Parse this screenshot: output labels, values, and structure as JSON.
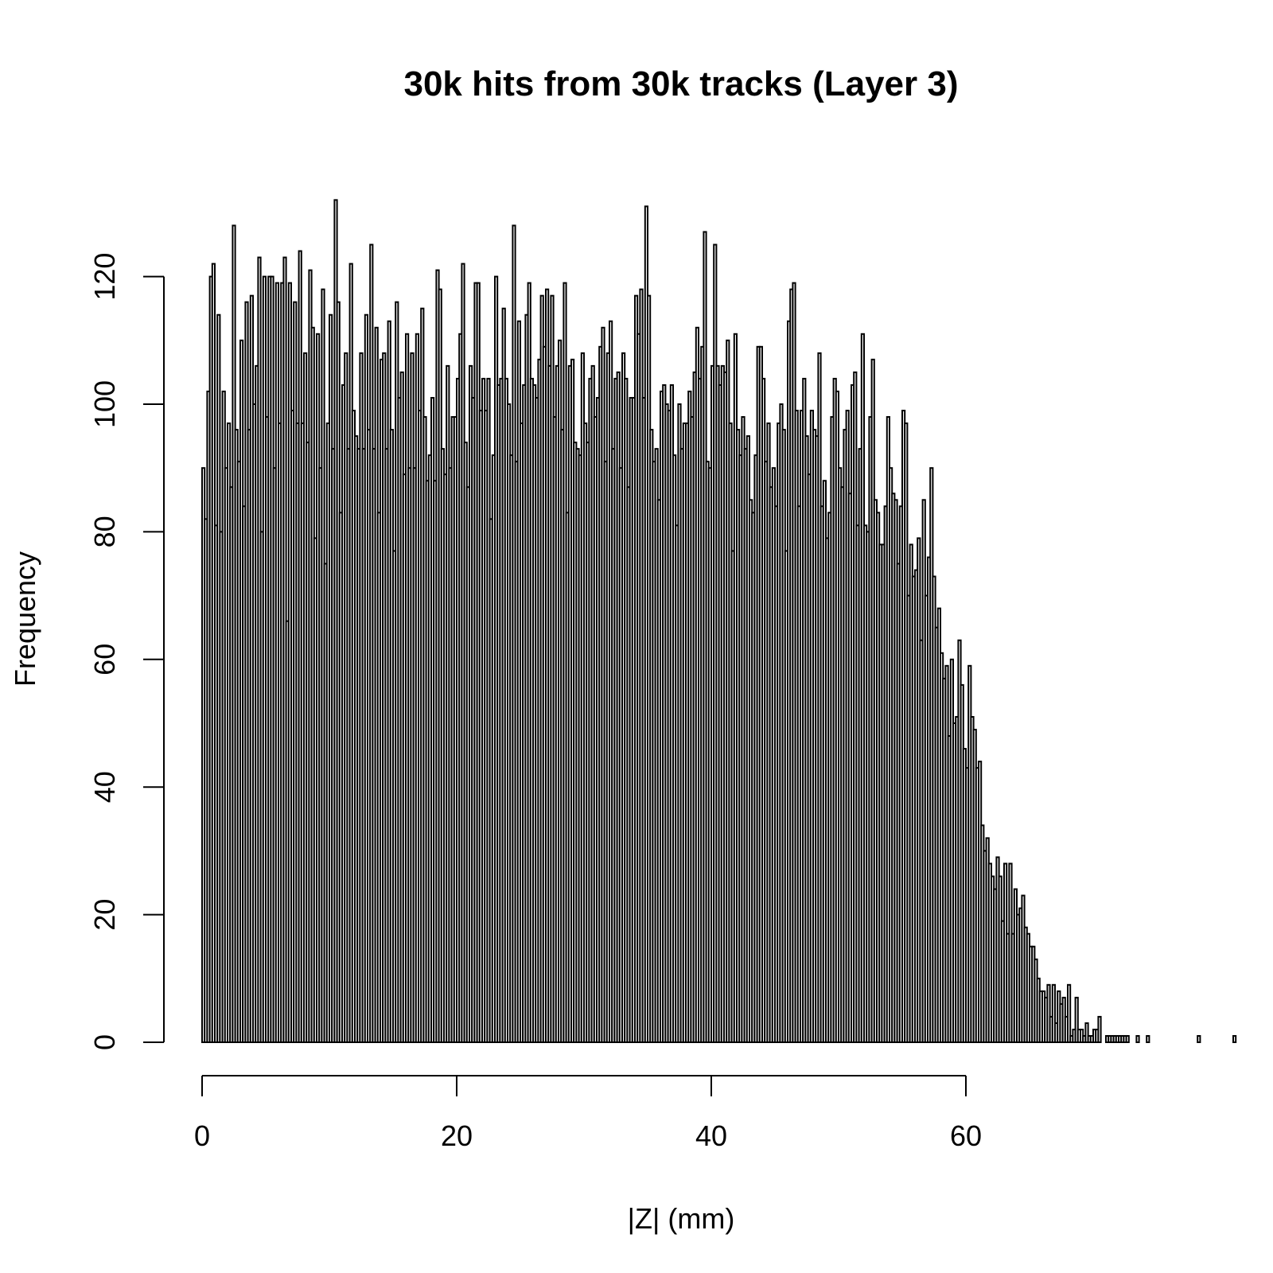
{
  "chart_data": {
    "type": "bar",
    "title": "30k hits from 30k tracks (Layer 3)",
    "xlabel": "|Z| (mm)",
    "ylabel": "Frequency",
    "xlim": [
      0,
      78
    ],
    "ylim": [
      0,
      132
    ],
    "xticks": [
      0,
      20,
      40,
      60
    ],
    "yticks": [
      0,
      20,
      40,
      60,
      80,
      100,
      120
    ],
    "bin_width": 0.2,
    "bin_start": 0,
    "grid": false,
    "legend": "none",
    "bar_color": "#ffffff",
    "edge_color": "#000000",
    "values": [
      90,
      82,
      102,
      120,
      122,
      81,
      114,
      80,
      102,
      90,
      97,
      87,
      128,
      96,
      91,
      110,
      84,
      116,
      96,
      117,
      100,
      106,
      123,
      80,
      120,
      98,
      120,
      120,
      90,
      119,
      97,
      119,
      123,
      66,
      119,
      99,
      116,
      97,
      124,
      97,
      108,
      94,
      121,
      112,
      79,
      111,
      90,
      118,
      75,
      97,
      114,
      93,
      132,
      116,
      83,
      103,
      108,
      93,
      122,
      99,
      95,
      93,
      108,
      93,
      114,
      96,
      125,
      93,
      112,
      83,
      107,
      108,
      93,
      113,
      96,
      77,
      116,
      101,
      105,
      89,
      111,
      90,
      108,
      90,
      111,
      99,
      115,
      98,
      88,
      92,
      101,
      88,
      121,
      118,
      93,
      89,
      106,
      90,
      98,
      98,
      104,
      111,
      122,
      94,
      87,
      106,
      101,
      119,
      119,
      99,
      104,
      99,
      104,
      82,
      92,
      120,
      103,
      104,
      115,
      104,
      100,
      92,
      128,
      91,
      113,
      97,
      103,
      114,
      119,
      104,
      103,
      101,
      107,
      117,
      109,
      118,
      106,
      117,
      98,
      106,
      110,
      96,
      119,
      83,
      106,
      107,
      94,
      93,
      92,
      108,
      97,
      94,
      104,
      106,
      98,
      101,
      109,
      112,
      91,
      108,
      113,
      93,
      104,
      105,
      90,
      108,
      104,
      87,
      101,
      101,
      117,
      111,
      118,
      101,
      131,
      117,
      96,
      91,
      93,
      85,
      102,
      103,
      100,
      99,
      103,
      92,
      81,
      100,
      93,
      97,
      97,
      102,
      98,
      105,
      112,
      104,
      109,
      127,
      91,
      90,
      106,
      125,
      106,
      103,
      106,
      105,
      110,
      97,
      77,
      111,
      96,
      92,
      98,
      93,
      95,
      85,
      83,
      92,
      109,
      109,
      104,
      91,
      97,
      87,
      90,
      84,
      97,
      100,
      96,
      77,
      113,
      118,
      119,
      99,
      84,
      99,
      104,
      95,
      89,
      99,
      96,
      95,
      108,
      84,
      88,
      79,
      83,
      98,
      104,
      102,
      90,
      87,
      96,
      99,
      86,
      103,
      105,
      81,
      93,
      111,
      81,
      80,
      98,
      107,
      85,
      83,
      78,
      78,
      84,
      98,
      90,
      86,
      85,
      75,
      84,
      99,
      97,
      70,
      78,
      73,
      74,
      79,
      63,
      85,
      70,
      76,
      90,
      73,
      65,
      68,
      61,
      57,
      59,
      48,
      60,
      50,
      51,
      63,
      56,
      46,
      43,
      59,
      51,
      49,
      43,
      44,
      34,
      30,
      32,
      28,
      26,
      24,
      29,
      26,
      19,
      28,
      17,
      28,
      17,
      24,
      20,
      21,
      23,
      18,
      17,
      15,
      15,
      13,
      10,
      8,
      8,
      7,
      9,
      4,
      9,
      3,
      8,
      6,
      7,
      4,
      9,
      1,
      2,
      7,
      2,
      2,
      1,
      3,
      1,
      1,
      2,
      2,
      4,
      0,
      0,
      1,
      1,
      1,
      1,
      1,
      1,
      1,
      1,
      1,
      0,
      0,
      0,
      1,
      0,
      0,
      0,
      1,
      0,
      0,
      0,
      0,
      0,
      0,
      0,
      0,
      0,
      0,
      0,
      0,
      0,
      0,
      0,
      0,
      0,
      0,
      0,
      1,
      0,
      0,
      0,
      0,
      0,
      0,
      0,
      0,
      0,
      0,
      0,
      0,
      0,
      1
    ]
  }
}
